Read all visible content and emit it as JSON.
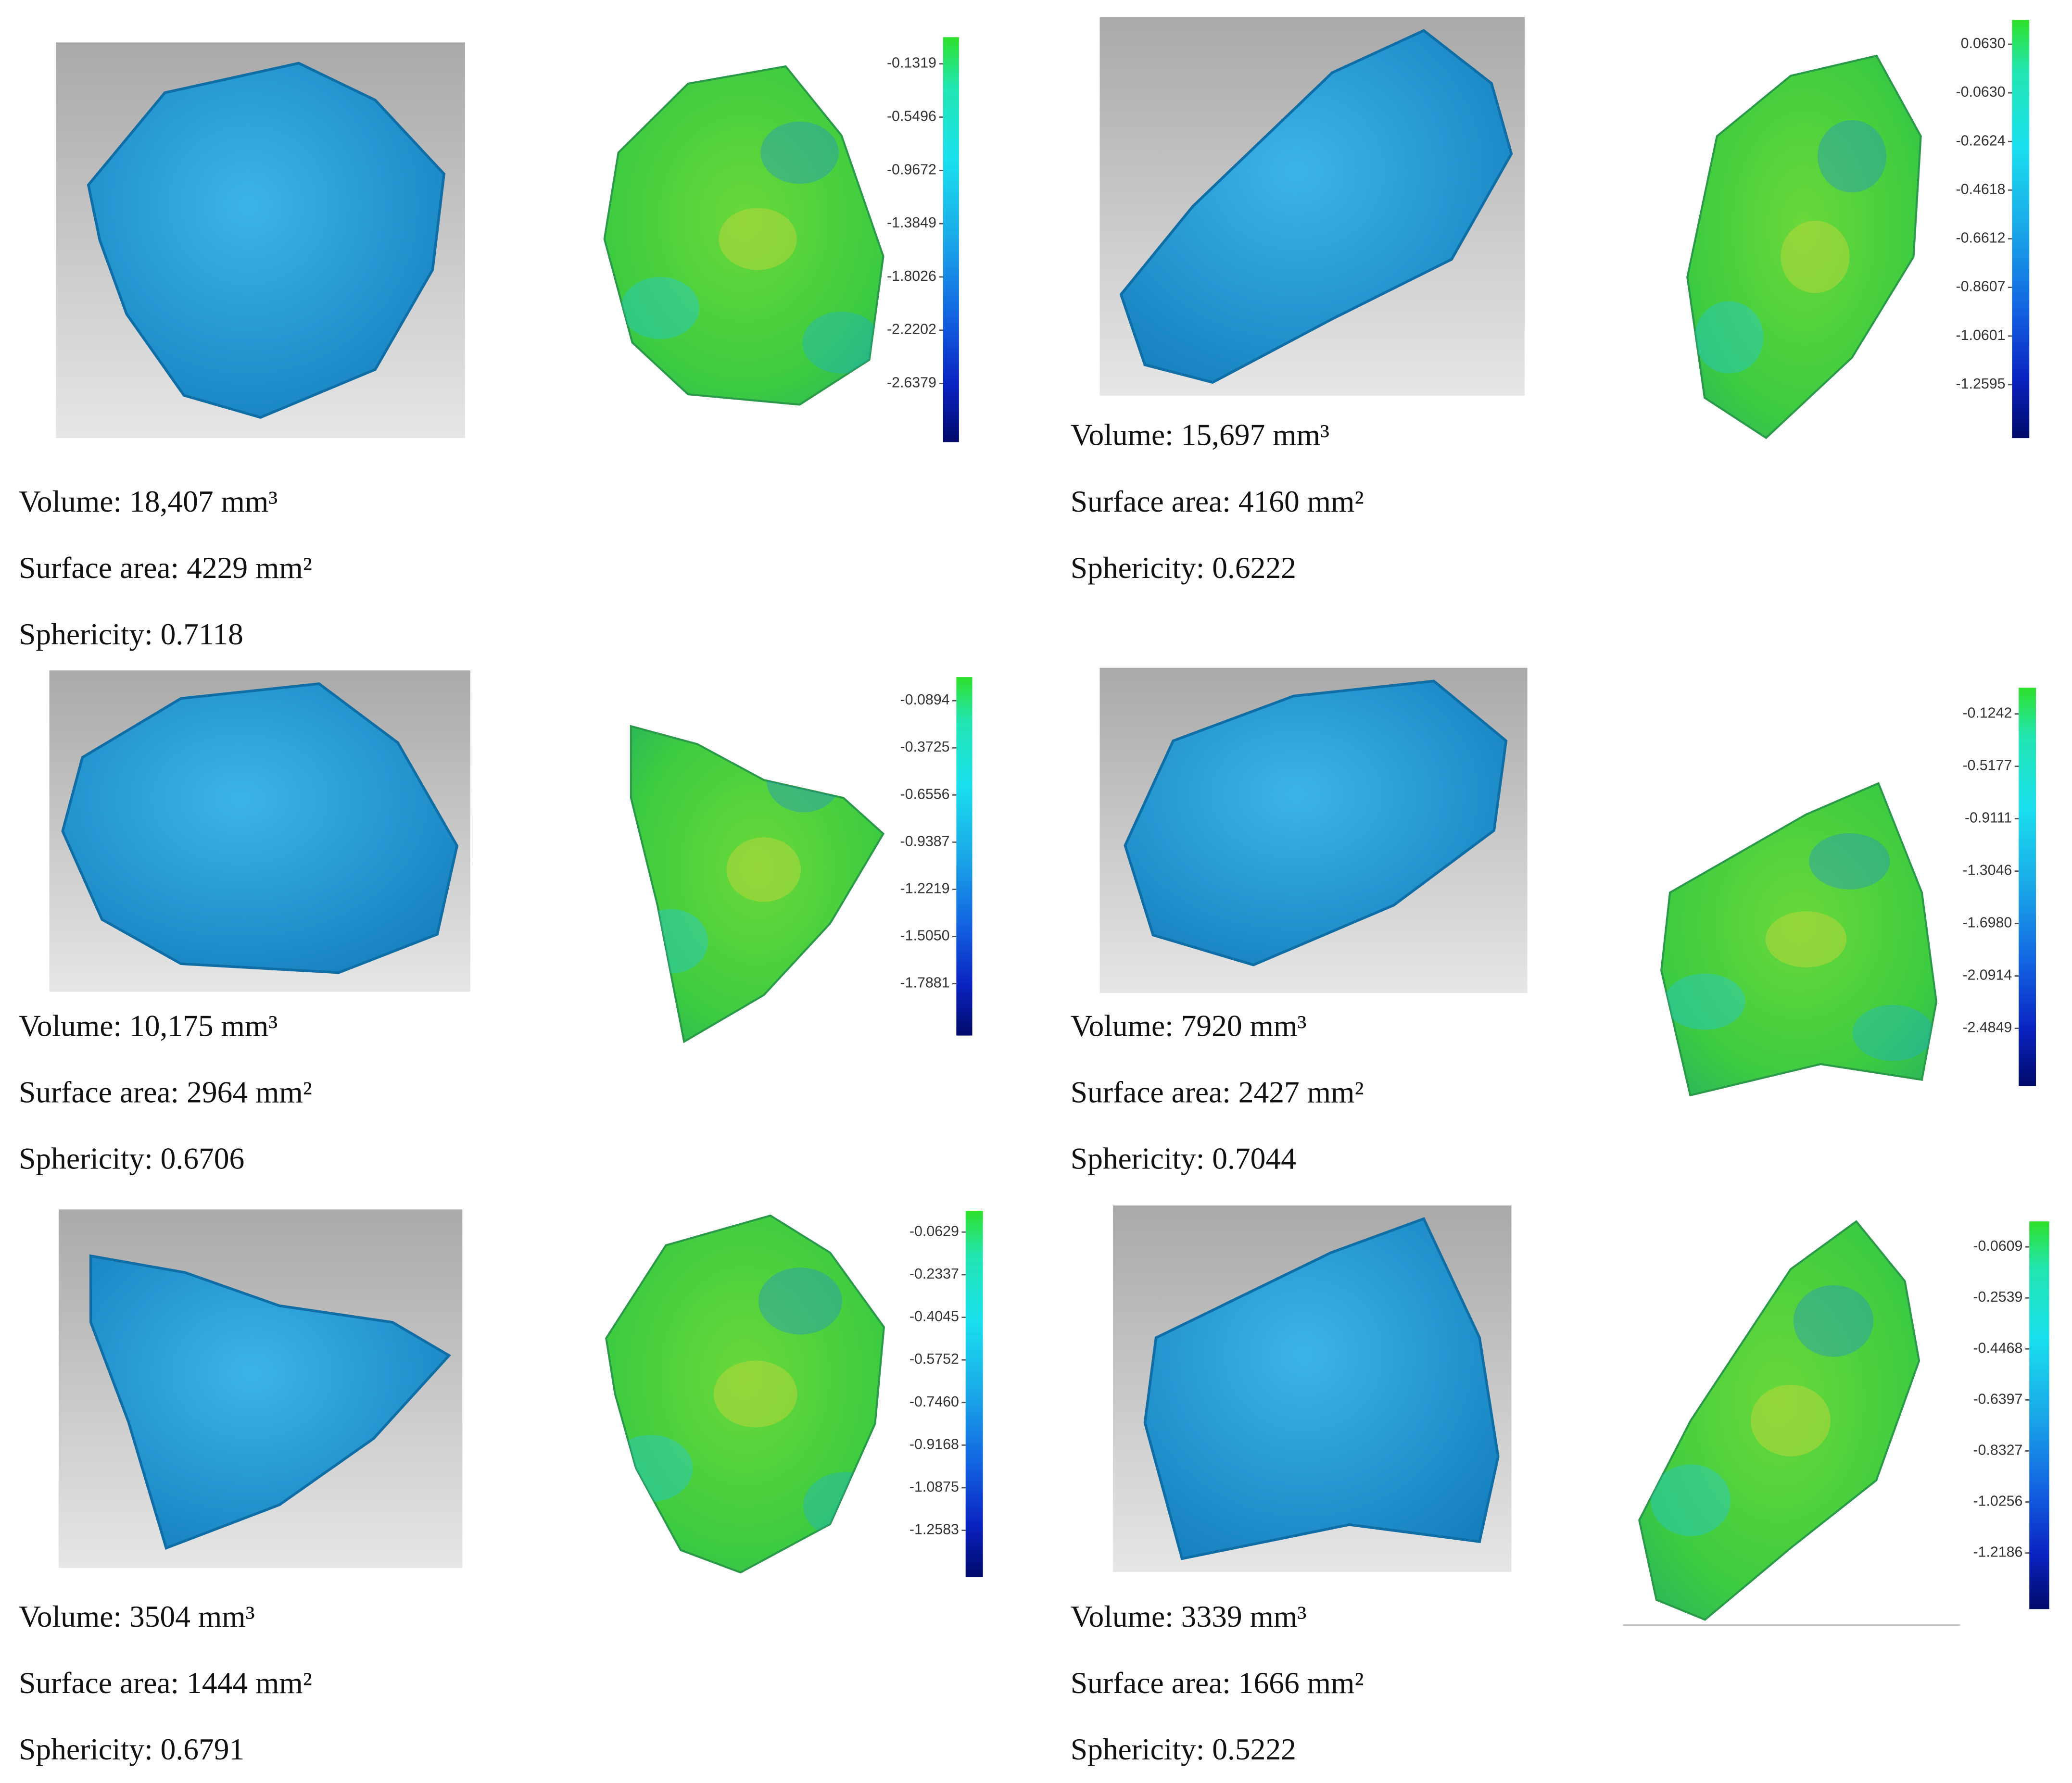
{
  "specimens": [
    {
      "volume": "Volume: 18,407 mm³",
      "surface_area": "Surface area: 4229 mm²",
      "sphericity": "Sphericity: 0.7118",
      "scale_labels": [
        "-0.1319",
        "-0.5496",
        "-0.9672",
        "-1.3849",
        "-1.8026",
        "-2.2202",
        "-2.6379"
      ]
    },
    {
      "volume": "Volume: 15,697 mm³",
      "surface_area": "Surface area: 4160 mm²",
      "sphericity": "Sphericity: 0.6222",
      "scale_labels": [
        "0.0630",
        "-0.0630",
        "-0.2624",
        "-0.4618",
        "-0.6612",
        "-0.8607",
        "-1.0601",
        "-1.2595"
      ]
    },
    {
      "volume": "Volume: 10,175 mm³",
      "surface_area": "Surface area: 2964 mm²",
      "sphericity": "Sphericity: 0.6706",
      "scale_labels": [
        "-0.0894",
        "-0.3725",
        "-0.6556",
        "-0.9387",
        "-1.2219",
        "-1.5050",
        "-1.7881"
      ]
    },
    {
      "volume": "Volume: 7920 mm³",
      "surface_area": "Surface area: 2427 mm²",
      "sphericity": "Sphericity: 0.7044",
      "scale_labels": [
        "-0.1242",
        "-0.5177",
        "-0.9111",
        "-1.3046",
        "-1.6980",
        "-2.0914",
        "-2.4849"
      ]
    },
    {
      "volume": "Volume: 3504 mm³",
      "surface_area": "Surface area: 1444 mm²",
      "sphericity": "Sphericity: 0.6791",
      "scale_labels": [
        "-0.0629",
        "-0.2337",
        "-0.4045",
        "-0.5752",
        "-0.7460",
        "-0.9168",
        "-1.0875",
        "-1.2583"
      ]
    },
    {
      "volume": "Volume: 3339 mm³",
      "surface_area": "Surface area: 1666 mm²",
      "sphericity": "Sphericity: 0.5222",
      "scale_labels": [
        "-0.0609",
        "-0.2539",
        "-0.4468",
        "-0.6397",
        "-0.8327",
        "-1.0256",
        "-1.2186"
      ]
    }
  ]
}
